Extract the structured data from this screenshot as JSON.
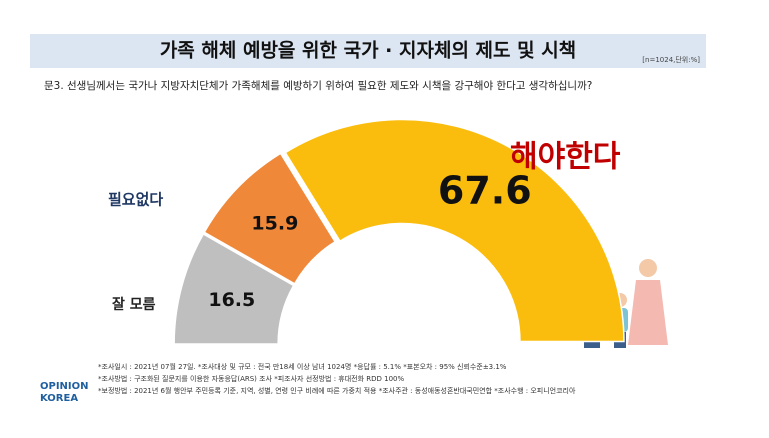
{
  "chart_data": {
    "type": "pie",
    "title": "가족 해체 예방을 위한 국가 · 지자체의 제도 및 시책",
    "note": "[n=1024,단위:%]",
    "subtitle": "문3. 선생님께서는 국가나 지방자치단체가 가족해체를 예방하기 위하여 필요한 제도와 시책을 강구해야 한다고 생각하십니까?",
    "categories": [
      "잘 모름",
      "필요없다",
      "해야한다"
    ],
    "values": [
      16.5,
      15.9,
      67.6
    ],
    "colors": [
      "#bfbfbf",
      "#f0883a",
      "#fbbd0d"
    ],
    "label_colors": [
      "#222222",
      "#1f3864",
      "#c00000"
    ],
    "footnotes": [
      "*조사일시 : 2021년 07월 27일.  *조사대상 및 규모 : 전국 만18세 이상 남녀 1024명 *응답률 : 5.1%   *표본오차 : 95% 신뢰수준±3.1%",
      "*조사방법 : 구조화된 질문지를 이용한 자동응답(ARS) 조사 *피조사자 선정방법 : 휴대전화 RDD 100%",
      "*보정방법 : 2021년 6월 행안부 주민등록 기준, 지역, 성별, 연령 인구 비례에 따른 가중치 적용  *조사주관 : 동성애동성혼반대국민연합 *조사수행 : 오피니언코리아"
    ],
    "logo": [
      "OPINION",
      "KOREA"
    ]
  }
}
